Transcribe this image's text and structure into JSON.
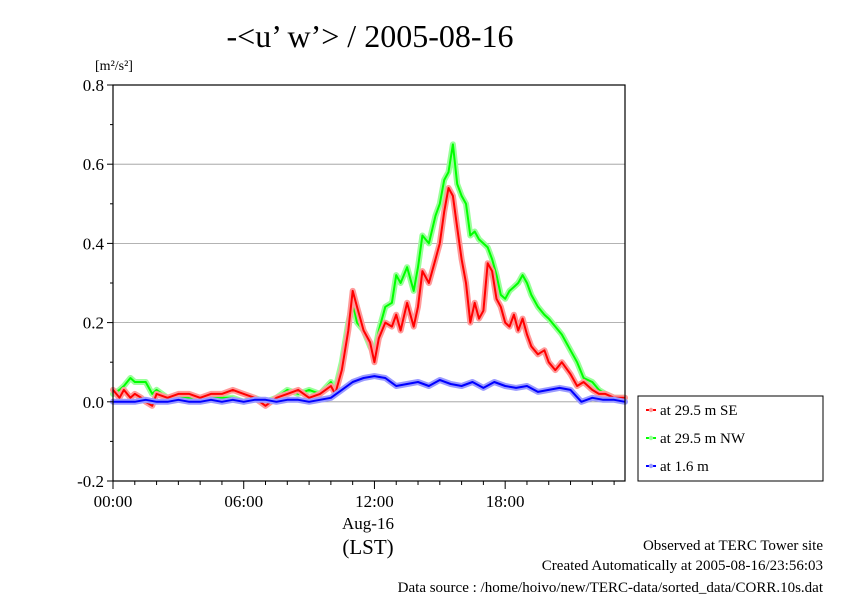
{
  "chart_data": {
    "type": "line",
    "title": "-<u’ w’> / 2005-08-16",
    "ylabel": "[m²/s²]",
    "xlabel": "(LST)",
    "x_sublabel": "Aug-16",
    "xlim": [
      0,
      23.5
    ],
    "ylim": [
      -0.2,
      0.8
    ],
    "yticks": [
      -0.2,
      0.0,
      0.2,
      0.4,
      0.6,
      0.8
    ],
    "ytick_labels": [
      "-0.2",
      "0.0",
      "0.2",
      "0.4",
      "0.6",
      "0.8"
    ],
    "xticks": [
      0,
      6,
      12,
      18
    ],
    "xtick_labels": [
      "00:00",
      "06:00",
      "12:00",
      "18:00"
    ],
    "grid": true,
    "legend_position": "right-outside",
    "x_unit": "hours (LST)",
    "series": [
      {
        "name": "at 29.5 m SE",
        "color": "#ff0000",
        "band_color": "#ff9a9a",
        "x": [
          0,
          0.3,
          0.5,
          0.8,
          1.0,
          1.3,
          1.5,
          1.8,
          2.0,
          2.5,
          3.0,
          3.5,
          4.0,
          4.5,
          5.0,
          5.5,
          6.0,
          6.5,
          7.0,
          7.5,
          8.0,
          8.5,
          9.0,
          9.5,
          10.0,
          10.2,
          10.5,
          10.8,
          11.0,
          11.2,
          11.5,
          11.8,
          12.0,
          12.2,
          12.5,
          12.8,
          13.0,
          13.2,
          13.5,
          13.8,
          14.0,
          14.2,
          14.5,
          14.8,
          15.0,
          15.2,
          15.4,
          15.6,
          15.8,
          16.0,
          16.2,
          16.4,
          16.6,
          16.8,
          17.0,
          17.2,
          17.4,
          17.6,
          17.8,
          18.0,
          18.2,
          18.4,
          18.6,
          18.8,
          19.0,
          19.2,
          19.5,
          19.8,
          20.0,
          20.3,
          20.6,
          21.0,
          21.3,
          21.6,
          22.0,
          22.3,
          22.6,
          23.0,
          23.5
        ],
        "values": [
          0.03,
          0.01,
          0.03,
          0.01,
          0.02,
          0.01,
          0.0,
          -0.01,
          0.02,
          0.01,
          0.02,
          0.02,
          0.01,
          0.02,
          0.02,
          0.03,
          0.02,
          0.01,
          -0.01,
          0.01,
          0.02,
          0.03,
          0.01,
          0.02,
          0.04,
          0.02,
          0.08,
          0.18,
          0.28,
          0.24,
          0.18,
          0.15,
          0.1,
          0.16,
          0.2,
          0.19,
          0.22,
          0.18,
          0.25,
          0.19,
          0.24,
          0.33,
          0.3,
          0.36,
          0.4,
          0.48,
          0.54,
          0.52,
          0.44,
          0.36,
          0.3,
          0.2,
          0.25,
          0.21,
          0.23,
          0.35,
          0.33,
          0.26,
          0.24,
          0.2,
          0.19,
          0.22,
          0.18,
          0.21,
          0.17,
          0.14,
          0.12,
          0.13,
          0.1,
          0.08,
          0.1,
          0.07,
          0.04,
          0.05,
          0.03,
          0.02,
          0.02,
          0.01,
          0.01
        ]
      },
      {
        "name": "at 29.5 m NW",
        "color": "#00ff00",
        "band_color": "#9aff9a",
        "x": [
          0,
          0.3,
          0.5,
          0.8,
          1.0,
          1.3,
          1.5,
          1.8,
          2.0,
          2.5,
          3.0,
          3.5,
          4.0,
          4.5,
          5.0,
          5.5,
          6.0,
          6.5,
          7.0,
          7.5,
          8.0,
          8.5,
          9.0,
          9.5,
          10.0,
          10.2,
          10.5,
          10.8,
          11.0,
          11.2,
          11.5,
          11.8,
          12.0,
          12.2,
          12.5,
          12.8,
          13.0,
          13.2,
          13.5,
          13.8,
          14.0,
          14.2,
          14.5,
          14.8,
          15.0,
          15.2,
          15.4,
          15.6,
          15.8,
          16.0,
          16.2,
          16.4,
          16.6,
          16.8,
          17.0,
          17.2,
          17.4,
          17.6,
          17.8,
          18.0,
          18.2,
          18.4,
          18.6,
          18.8,
          19.0,
          19.2,
          19.5,
          19.8,
          20.0,
          20.3,
          20.6,
          21.0,
          21.3,
          21.6,
          22.0,
          22.3,
          22.6,
          23.0,
          23.5
        ],
        "values": [
          0.02,
          0.03,
          0.04,
          0.06,
          0.05,
          0.05,
          0.05,
          0.02,
          0.03,
          0.01,
          0.01,
          0.01,
          0.01,
          0.01,
          0.01,
          0.01,
          0.0,
          0.01,
          0.0,
          0.01,
          0.03,
          0.02,
          0.03,
          0.02,
          0.05,
          0.03,
          0.1,
          0.2,
          0.25,
          0.2,
          0.18,
          0.14,
          0.12,
          0.18,
          0.24,
          0.25,
          0.32,
          0.3,
          0.34,
          0.28,
          0.34,
          0.42,
          0.4,
          0.47,
          0.5,
          0.56,
          0.58,
          0.65,
          0.55,
          0.52,
          0.5,
          0.42,
          0.43,
          0.41,
          0.4,
          0.39,
          0.36,
          0.32,
          0.27,
          0.26,
          0.28,
          0.29,
          0.3,
          0.32,
          0.3,
          0.27,
          0.24,
          0.22,
          0.21,
          0.19,
          0.17,
          0.13,
          0.1,
          0.06,
          0.05,
          0.03,
          0.02,
          0.01,
          0.01
        ]
      },
      {
        "name": "at 1.6 m",
        "color": "#0000ff",
        "band_color": "#9a9aff",
        "x": [
          0,
          0.5,
          1.0,
          1.5,
          2.0,
          2.5,
          3.0,
          3.5,
          4.0,
          4.5,
          5.0,
          5.5,
          6.0,
          6.5,
          7.0,
          7.5,
          8.0,
          8.5,
          9.0,
          9.5,
          10.0,
          10.5,
          11.0,
          11.5,
          12.0,
          12.5,
          13.0,
          13.5,
          14.0,
          14.5,
          15.0,
          15.5,
          16.0,
          16.5,
          17.0,
          17.5,
          18.0,
          18.5,
          19.0,
          19.5,
          20.0,
          20.5,
          21.0,
          21.5,
          22.0,
          22.5,
          23.0,
          23.5
        ],
        "values": [
          0.0,
          0.0,
          0.0,
          0.005,
          0.0,
          0.0,
          0.005,
          0.0,
          0.0,
          0.005,
          0.0,
          0.005,
          0.0,
          0.005,
          0.005,
          0.0,
          0.005,
          0.005,
          0.0,
          0.005,
          0.01,
          0.03,
          0.05,
          0.06,
          0.065,
          0.06,
          0.04,
          0.045,
          0.05,
          0.04,
          0.055,
          0.045,
          0.04,
          0.05,
          0.035,
          0.05,
          0.04,
          0.035,
          0.04,
          0.025,
          0.03,
          0.035,
          0.03,
          0.0,
          0.01,
          0.005,
          0.005,
          0.0
        ]
      }
    ]
  },
  "footer": {
    "line1": "Observed at TERC Tower site",
    "line2": "Created Automatically at 2005-08-16/23:56:03",
    "line3": "Data source : /home/hoivo/new/TERC-data/sorted_data/CORR.10s.dat"
  }
}
